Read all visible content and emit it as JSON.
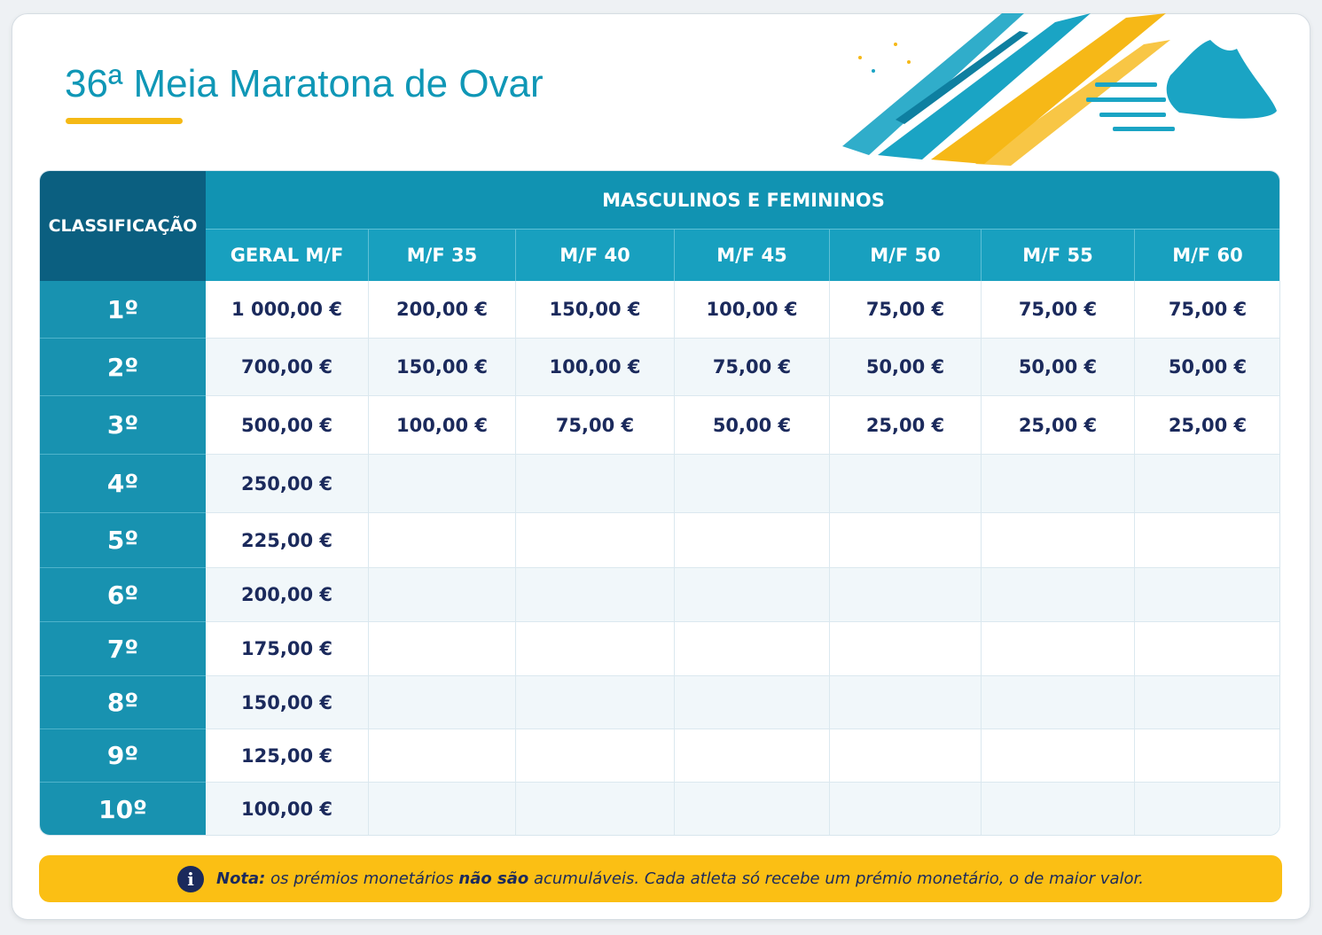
{
  "header": {
    "title": "36ª Meia Maratona de Ovar"
  },
  "table": {
    "rank_header": "CLASSIFICAÇÃO",
    "group_header": "MASCULINOS E FEMININOS",
    "columns": [
      "GERAL M/F",
      "M/F 35",
      "M/F 40",
      "M/F 45",
      "M/F 50",
      "M/F 55",
      "M/F 60"
    ],
    "rows": [
      {
        "rank": "1º",
        "prizes": [
          "1 000,00 €",
          "200,00 €",
          "150,00 €",
          "100,00 €",
          "75,00 €",
          "75,00 €",
          "75,00 €"
        ]
      },
      {
        "rank": "2º",
        "prizes": [
          "700,00 €",
          "150,00 €",
          "100,00 €",
          "75,00 €",
          "50,00 €",
          "50,00 €",
          "50,00 €"
        ]
      },
      {
        "rank": "3º",
        "prizes": [
          "500,00 €",
          "100,00 €",
          "75,00 €",
          "50,00 €",
          "25,00 €",
          "25,00 €",
          "25,00 €"
        ]
      },
      {
        "rank": "4º",
        "prizes": [
          "250,00 €"
        ]
      },
      {
        "rank": "5º",
        "prizes": [
          "225,00 €"
        ]
      },
      {
        "rank": "6º",
        "prizes": [
          "200,00 €"
        ]
      },
      {
        "rank": "7º",
        "prizes": [
          "175,00 €"
        ]
      },
      {
        "rank": "8º",
        "prizes": [
          "150,00 €"
        ]
      },
      {
        "rank": "9º",
        "prizes": [
          "125,00 €"
        ]
      },
      {
        "rank": "10º",
        "prizes": [
          "100,00 €"
        ]
      }
    ]
  },
  "note": {
    "parts": [
      "Nota:",
      " os prémios monetários ",
      "não são",
      " acumuláveis. Cada atleta só recebe um prémio monetário, o de maior valor."
    ]
  }
}
